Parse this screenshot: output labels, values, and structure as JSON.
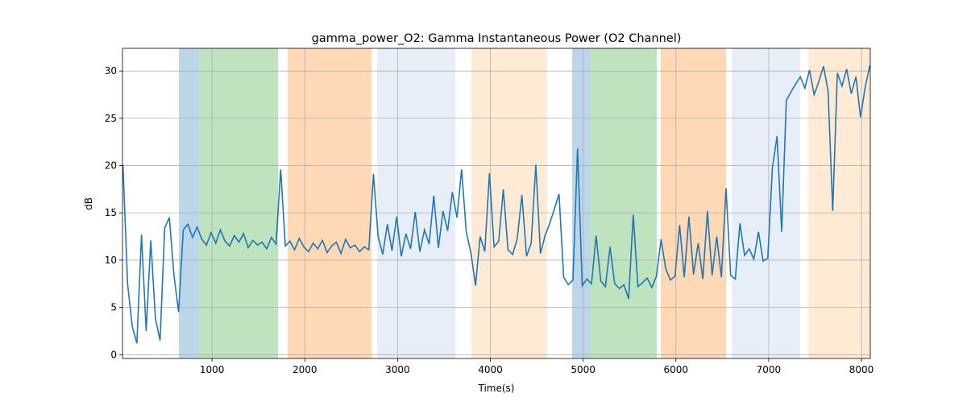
{
  "chart_data": {
    "type": "line",
    "title": "gamma_power_O2: Gamma Instantaneous Power (O2 Channel)",
    "xlabel": "Time(s)",
    "ylabel": "dB",
    "x": [
      40,
      90,
      140,
      190,
      240,
      290,
      340,
      390,
      440,
      490,
      540,
      590,
      640,
      690,
      740,
      790,
      840,
      890,
      940,
      990,
      1040,
      1090,
      1140,
      1190,
      1240,
      1290,
      1340,
      1390,
      1440,
      1490,
      1540,
      1590,
      1640,
      1690,
      1740,
      1790,
      1840,
      1890,
      1940,
      1990,
      2040,
      2090,
      2140,
      2190,
      2240,
      2290,
      2340,
      2390,
      2440,
      2490,
      2540,
      2590,
      2640,
      2690,
      2740,
      2790,
      2840,
      2890,
      2940,
      2990,
      3040,
      3090,
      3140,
      3190,
      3240,
      3290,
      3340,
      3390,
      3440,
      3490,
      3540,
      3590,
      3640,
      3690,
      3740,
      3790,
      3840,
      3890,
      3940,
      3990,
      4040,
      4090,
      4140,
      4190,
      4240,
      4290,
      4340,
      4390,
      4440,
      4490,
      4540,
      4590,
      4640,
      4690,
      4740,
      4790,
      4840,
      4890,
      4940,
      4990,
      5040,
      5090,
      5140,
      5190,
      5240,
      5290,
      5340,
      5390,
      5440,
      5490,
      5540,
      5590,
      5640,
      5690,
      5740,
      5790,
      5840,
      5890,
      5940,
      5990,
      6040,
      6090,
      6140,
      6190,
      6240,
      6290,
      6340,
      6390,
      6440,
      6490,
      6540,
      6590,
      6640,
      6690,
      6740,
      6790,
      6840,
      6890,
      6940,
      6990,
      7040,
      7090,
      7140,
      7190,
      7240,
      7290,
      7340,
      7390,
      7440,
      7490,
      7540,
      7590,
      7640,
      7690,
      7740,
      7790,
      7840,
      7890,
      7940,
      7990,
      8040,
      8090
    ],
    "values": [
      20.1,
      7.5,
      3.0,
      1.2,
      12.7,
      2.5,
      12.1,
      3.8,
      1.5,
      13.4,
      14.5,
      8.4,
      4.5,
      13.2,
      13.8,
      12.4,
      13.5,
      12.2,
      11.6,
      12.9,
      11.8,
      13.2,
      12.0,
      11.5,
      12.6,
      11.9,
      12.8,
      11.3,
      12.1,
      11.6,
      11.9,
      11.2,
      12.4,
      11.7,
      19.6,
      11.5,
      12.0,
      11.1,
      12.3,
      11.4,
      10.9,
      11.8,
      11.2,
      12.1,
      10.8,
      11.5,
      11.9,
      10.7,
      12.2,
      11.3,
      11.6,
      10.9,
      11.4,
      11.1,
      19.1,
      12.5,
      10.6,
      13.8,
      11.0,
      14.6,
      10.4,
      12.8,
      11.2,
      15.1,
      10.9,
      13.2,
      11.7,
      16.8,
      11.3,
      15.2,
      13.1,
      17.2,
      14.5,
      19.6,
      13.0,
      10.8,
      7.3,
      12.5,
      10.9,
      19.2,
      11.4,
      12.0,
      17.5,
      11.1,
      10.6,
      12.3,
      16.9,
      10.4,
      11.8,
      20.1,
      10.7,
      12.6,
      13.9,
      15.4,
      17.0,
      8.2,
      7.4,
      7.9,
      21.8,
      7.3,
      8.0,
      7.5,
      12.6,
      7.8,
      7.2,
      11.4,
      7.5,
      7.0,
      7.4,
      5.9,
      14.8,
      7.2,
      7.6,
      8.1,
      7.1,
      8.3,
      12.2,
      9.1,
      7.9,
      8.3,
      13.7,
      8.2,
      14.6,
      8.5,
      11.8,
      8.0,
      15.2,
      8.4,
      12.5,
      8.2,
      17.6,
      8.4,
      8.0,
      13.9,
      10.5,
      11.2,
      10.1,
      13.0,
      9.9,
      10.2,
      19.8,
      23.1,
      13.0,
      26.9,
      27.8,
      28.6,
      29.4,
      28.2,
      30.1,
      27.5,
      28.9,
      30.5,
      27.9,
      15.2,
      29.8,
      28.4,
      30.2,
      27.6,
      29.4,
      25.1,
      28.3,
      30.6
    ],
    "color": "#1f77b4",
    "spans": [
      {
        "start": 644,
        "end": 861,
        "color": "#1f77b4"
      },
      {
        "start": 861,
        "end": 1712,
        "color": "#2ca02c"
      },
      {
        "start": 1816,
        "end": 2719,
        "color": "#ff7f0e"
      },
      {
        "start": 2780,
        "end": 3622,
        "color": "#aec7e8"
      },
      {
        "start": 3796,
        "end": 4612,
        "color": "#ffbb78"
      },
      {
        "start": 4882,
        "end": 5073,
        "color": "#1f77b4"
      },
      {
        "start": 5073,
        "end": 5794,
        "color": "#2ca02c"
      },
      {
        "start": 5837,
        "end": 6541,
        "color": "#ff7f0e"
      },
      {
        "start": 6602,
        "end": 7340,
        "color": "#aec7e8"
      },
      {
        "start": 7427,
        "end": 8095,
        "color": "#ffbb78"
      }
    ],
    "span_alpha": 0.3,
    "xlim": [
      35,
      8095
    ],
    "xticks": [
      1000,
      2000,
      3000,
      4000,
      5000,
      6000,
      7000,
      8000
    ],
    "ylim": [
      -0.4,
      32.4
    ],
    "yticks": [
      0,
      5,
      10,
      15,
      20,
      25,
      30
    ],
    "grid": true
  }
}
